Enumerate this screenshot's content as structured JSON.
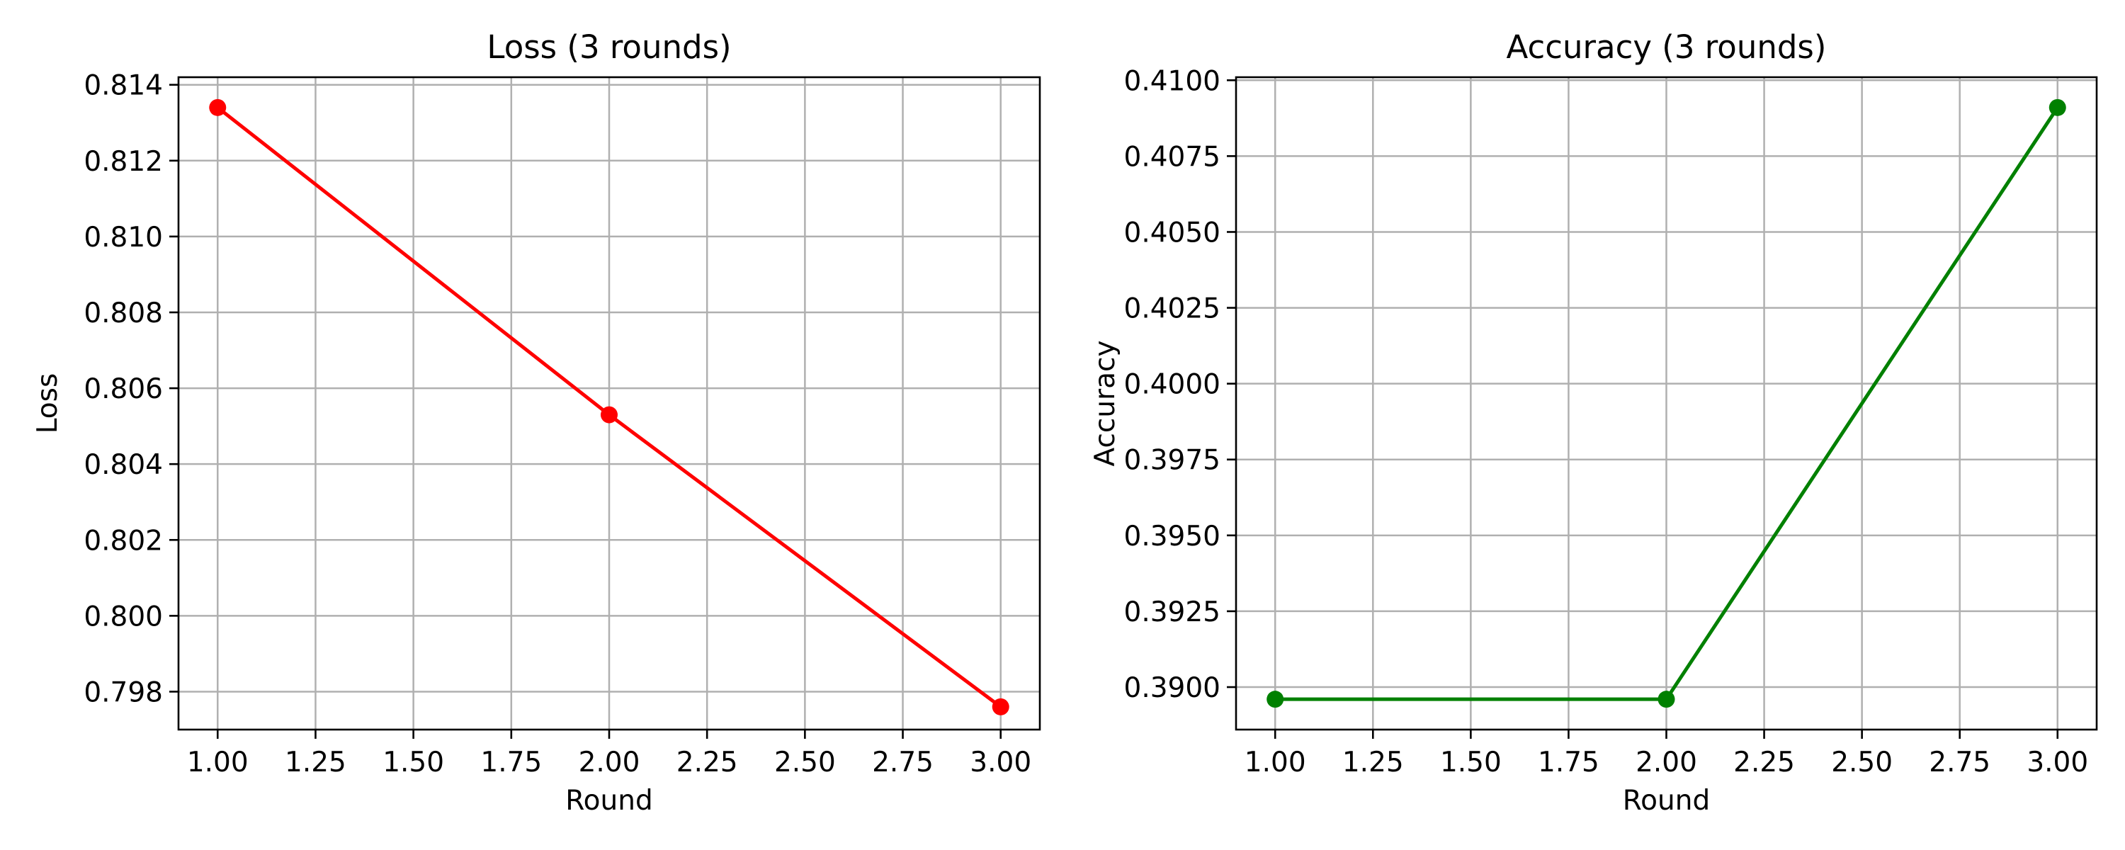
{
  "chart_data": [
    {
      "type": "line",
      "title": "Loss (3 rounds)",
      "xlabel": "Round",
      "ylabel": "Loss",
      "x": [
        1,
        2,
        3
      ],
      "series": [
        {
          "values": [
            0.8134,
            0.8053,
            0.7976
          ],
          "color": "#ff0000",
          "marker": "circle"
        }
      ],
      "xlim": [
        0.9,
        3.1
      ],
      "ylim": [
        0.797,
        0.8142
      ],
      "xticks": [
        1.0,
        1.25,
        1.5,
        1.75,
        2.0,
        2.25,
        2.5,
        2.75,
        3.0
      ],
      "xtick_labels": [
        "1.00",
        "1.25",
        "1.50",
        "1.75",
        "2.00",
        "2.25",
        "2.50",
        "2.75",
        "3.00"
      ],
      "yticks": [
        0.798,
        0.8,
        0.802,
        0.804,
        0.806,
        0.808,
        0.81,
        0.812,
        0.814
      ],
      "ytick_labels": [
        "0.798",
        "0.800",
        "0.802",
        "0.804",
        "0.806",
        "0.808",
        "0.810",
        "0.812",
        "0.814"
      ],
      "grid": true
    },
    {
      "type": "line",
      "title": "Accuracy (3 rounds)",
      "xlabel": "Round",
      "ylabel": "Accuracy",
      "x": [
        1,
        2,
        3
      ],
      "series": [
        {
          "values": [
            0.3896,
            0.3896,
            0.4091
          ],
          "color": "#008000",
          "marker": "circle"
        }
      ],
      "xlim": [
        0.9,
        3.1
      ],
      "ylim": [
        0.3886,
        0.4101
      ],
      "xticks": [
        1.0,
        1.25,
        1.5,
        1.75,
        2.0,
        2.25,
        2.5,
        2.75,
        3.0
      ],
      "xtick_labels": [
        "1.00",
        "1.25",
        "1.50",
        "1.75",
        "2.00",
        "2.25",
        "2.50",
        "2.75",
        "3.00"
      ],
      "yticks": [
        0.39,
        0.3925,
        0.395,
        0.3975,
        0.4,
        0.4025,
        0.405,
        0.4075,
        0.41
      ],
      "ytick_labels": [
        "0.3900",
        "0.3925",
        "0.3950",
        "0.3975",
        "0.4000",
        "0.4025",
        "0.4050",
        "0.4075",
        "0.4100"
      ],
      "grid": true
    }
  ]
}
